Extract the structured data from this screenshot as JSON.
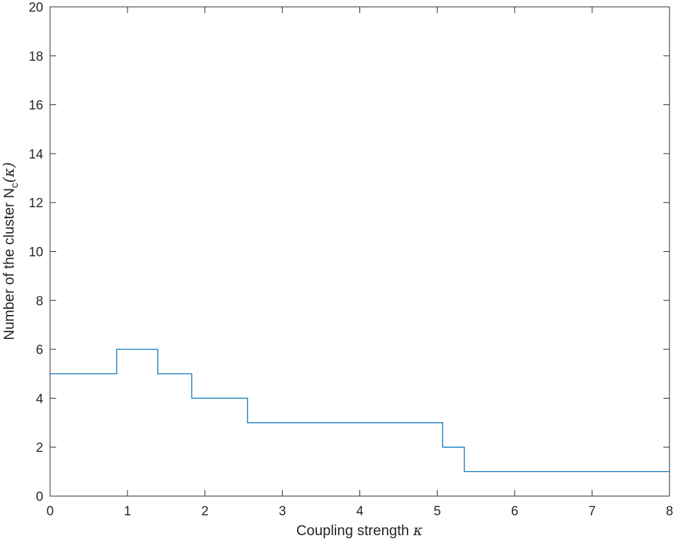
{
  "chart_data": {
    "type": "line",
    "step": true,
    "title": "",
    "xlabel": "Coupling strength",
    "xlabel_symbol": "κ",
    "ylabel": "Number of the cluster N",
    "ylabel_subscript": "c",
    "ylabel_suffix": "(κ)",
    "xlim": [
      0,
      8
    ],
    "ylim": [
      0,
      20
    ],
    "xticks": [
      0,
      1,
      2,
      3,
      4,
      5,
      6,
      7,
      8
    ],
    "yticks": [
      0,
      2,
      4,
      6,
      8,
      10,
      12,
      14,
      16,
      18,
      20
    ],
    "grid": false,
    "legend": "none",
    "series": [
      {
        "color": "#0072BD",
        "x": [
          0,
          0.86,
          0.86,
          1.39,
          1.39,
          1.83,
          1.83,
          2.55,
          2.55,
          5.07,
          5.07,
          5.35,
          5.35,
          8
        ],
        "y": [
          5,
          5,
          6,
          6,
          5,
          5,
          4,
          4,
          3,
          3,
          2,
          2,
          1,
          1
        ]
      }
    ]
  }
}
